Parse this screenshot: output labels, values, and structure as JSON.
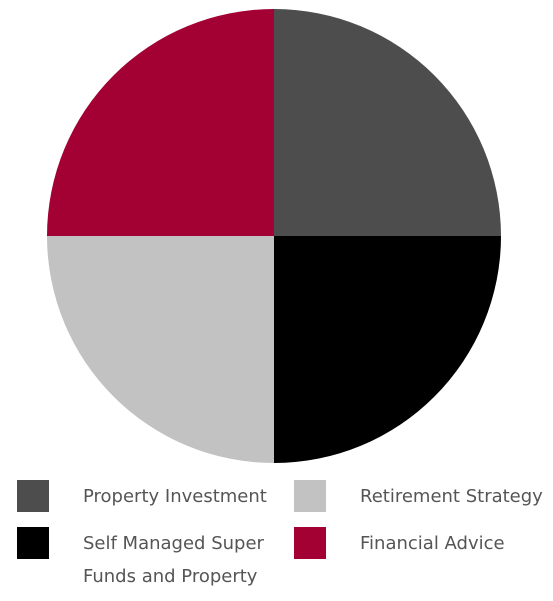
{
  "chart_data": {
    "type": "pie",
    "categories": [
      "Property Investment",
      "Self Managed Super Funds and Property",
      "Retirement Strategy",
      "Financial Advice"
    ],
    "values": [
      25,
      25,
      25,
      25
    ],
    "colors": [
      "#4d4d4d",
      "#000000",
      "#c2c2c2",
      "#a30034"
    ]
  }
}
